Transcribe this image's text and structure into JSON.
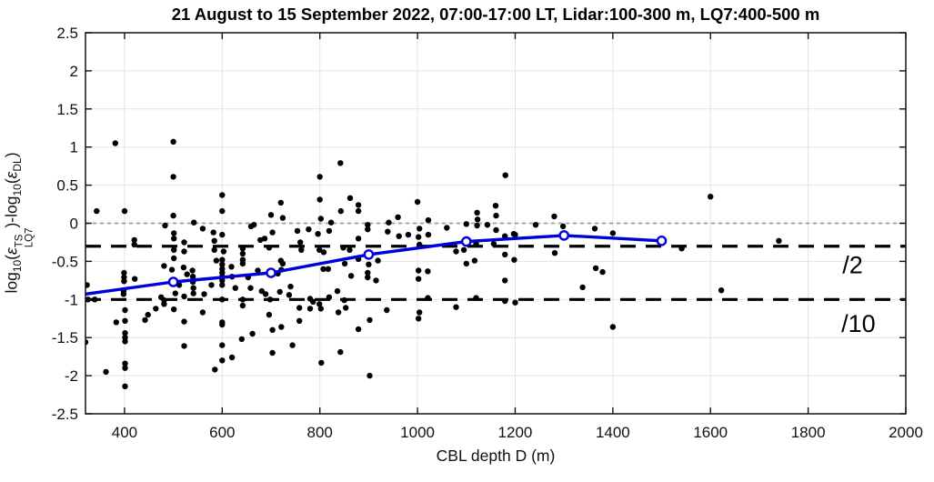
{
  "chart_data": {
    "type": "scatter",
    "title": "21 August to 15 September 2022, 07:00-17:00 LT, Lidar:100-300 m, LQ7:400-500 m",
    "xlabel": "CBL depth D (m)",
    "ylabel": "log10(ε_LQ7^TS)-log10(ε_DL)",
    "ylabel_rich": {
      "pre": "log",
      "sub1": "10",
      "p1": "(",
      "eps1": "ε",
      "sup": "TS",
      "sub2": "LQ7",
      "mid": ")-log",
      "sub3": "10",
      "p2": "(",
      "eps2": "ε",
      "sub4": "DL",
      "post": ")"
    },
    "xlim": [
      320,
      2000
    ],
    "ylim": [
      -2.5,
      2.5
    ],
    "xticks": [
      400,
      600,
      800,
      1000,
      1200,
      1400,
      1600,
      1800,
      2000
    ],
    "xticklabels": [
      "400",
      "600",
      "800",
      "1000",
      "1200",
      "1400",
      "1600",
      "1800",
      "2000"
    ],
    "yticks": [
      -2.5,
      -2,
      -1.5,
      -1,
      -0.5,
      0,
      0.5,
      1,
      1.5,
      2,
      2.5
    ],
    "yticklabels": [
      "-2.5",
      "-2",
      "-1.5",
      "-1",
      "-0.5",
      "0",
      "0.5",
      "1",
      "1.5",
      "2",
      "2.5"
    ],
    "grid": true,
    "grid_color": "#e3e3e3",
    "axis_color": "#111111",
    "background": "#ffffff",
    "legend": "none",
    "reference_lines": [
      {
        "y": 0,
        "color": "#a8a8a8",
        "style": "dotted",
        "width": 2,
        "label": ""
      },
      {
        "y": -0.301,
        "color": "#000000",
        "style": "dashed",
        "width": 3.2,
        "label": "/2",
        "label_x": 1891,
        "label_y": -0.54
      },
      {
        "y": -1.0,
        "color": "#000000",
        "style": "dashed",
        "width": 3.2,
        "label": "/10",
        "label_x": 1903,
        "label_y": -1.31
      }
    ],
    "series": [
      {
        "name": "lidar-vs-lq7-points",
        "type": "scatter",
        "color": "#000000",
        "marker": "filled-circle",
        "marker_radius": 3.2,
        "data": [
          [
            381,
            1.05
          ],
          [
            500,
            1.07
          ],
          [
            842,
            0.79
          ],
          [
            1180,
            0.63
          ],
          [
            500,
            0.61
          ],
          [
            800,
            0.61
          ],
          [
            600,
            0.37
          ],
          [
            1600,
            0.35
          ],
          [
            862,
            0.33
          ],
          [
            800,
            0.31
          ],
          [
            1000,
            0.28
          ],
          [
            720,
            0.27
          ],
          [
            879,
            0.24
          ],
          [
            1160,
            0.23
          ],
          [
            343,
            0.16
          ],
          [
            400,
            0.16
          ],
          [
            600,
            0.16
          ],
          [
            843,
            0.16
          ],
          [
            879,
            0.16
          ],
          [
            1122,
            0.14
          ],
          [
            700,
            0.11
          ],
          [
            500,
            0.1
          ],
          [
            1161,
            0.1
          ],
          [
            1280,
            0.09
          ],
          [
            960,
            0.08
          ],
          [
            724,
            0.07
          ],
          [
            802,
            0.06
          ],
          [
            1123,
            0.05
          ],
          [
            1022,
            0.04
          ],
          [
            823,
            0.01
          ],
          [
            941,
            0.01
          ],
          [
            542,
            0.01
          ],
          [
            1100,
            -0.01
          ],
          [
            665,
            -0.02
          ],
          [
            1143,
            -0.02
          ],
          [
            1242,
            -0.02
          ],
          [
            898,
            -0.02
          ],
          [
            483,
            -0.03
          ],
          [
            1122,
            -0.03
          ],
          [
            659,
            -0.04
          ],
          [
            1298,
            -0.04
          ],
          [
            1060,
            -0.06
          ],
          [
            560,
            -0.07
          ],
          [
            1004,
            -0.07
          ],
          [
            1363,
            -0.07
          ],
          [
            777,
            -0.08
          ],
          [
            898,
            -0.08
          ],
          [
            1161,
            -0.09
          ],
          [
            754,
            -0.1
          ],
          [
            819,
            -0.1
          ],
          [
            939,
            -0.11
          ],
          [
            582,
            -0.12
          ],
          [
            703,
            -0.12
          ],
          [
            501,
            -0.13
          ],
          [
            1400,
            -0.13
          ],
          [
            796,
            -0.14
          ],
          [
            1197,
            -0.14
          ],
          [
            600,
            -0.15
          ],
          [
            981,
            -0.15
          ],
          [
            1022,
            -0.15
          ],
          [
            1200,
            -0.15
          ],
          [
            962,
            -0.17
          ],
          [
            1179,
            -0.17
          ],
          [
            1002,
            -0.18
          ],
          [
            501,
            -0.2
          ],
          [
            687,
            -0.2
          ],
          [
            879,
            -0.2
          ],
          [
            420,
            -0.22
          ],
          [
            678,
            -0.22
          ],
          [
            584,
            -0.23
          ],
          [
            1740,
            -0.23
          ],
          [
            522,
            -0.25
          ],
          [
            760,
            -0.25
          ],
          [
            1120,
            -0.27
          ],
          [
            1156,
            -0.27
          ],
          [
            420,
            -0.28
          ],
          [
            1004,
            -0.28
          ],
          [
            696,
            -0.32
          ],
          [
            848,
            -0.32
          ],
          [
            642,
            -0.33
          ],
          [
            1541,
            -0.33
          ],
          [
            501,
            -0.35
          ],
          [
            584,
            -0.35
          ],
          [
            762,
            -0.35
          ],
          [
            799,
            -0.35
          ],
          [
            861,
            -0.35
          ],
          [
            1095,
            -0.35
          ],
          [
            522,
            -0.37
          ],
          [
            603,
            -0.37
          ],
          [
            1079,
            -0.37
          ],
          [
            808,
            -0.38
          ],
          [
            1281,
            -0.39
          ],
          [
            642,
            -0.4
          ],
          [
            1179,
            -0.41
          ],
          [
            501,
            -0.46
          ],
          [
            879,
            -0.47
          ],
          [
            600,
            -0.48
          ],
          [
            642,
            -0.48
          ],
          [
            1198,
            -0.48
          ],
          [
            588,
            -0.49
          ],
          [
            720,
            -0.49
          ],
          [
            919,
            -0.49
          ],
          [
            1117,
            -0.49
          ],
          [
            642,
            -0.53
          ],
          [
            724,
            -0.53
          ],
          [
            851,
            -0.53
          ],
          [
            1100,
            -0.53
          ],
          [
            600,
            -0.54
          ],
          [
            900,
            -0.54
          ],
          [
            481,
            -0.56
          ],
          [
            619,
            -0.57
          ],
          [
            521,
            -0.58
          ],
          [
            1365,
            -0.59
          ],
          [
            600,
            -0.6
          ],
          [
            807,
            -0.6
          ],
          [
            817,
            -0.6
          ],
          [
            497,
            -0.61
          ],
          [
            721,
            -0.61
          ],
          [
            539,
            -0.62
          ],
          [
            673,
            -0.62
          ],
          [
            1002,
            -0.62
          ],
          [
            1021,
            -0.63
          ],
          [
            1379,
            -0.64
          ],
          [
            399,
            -0.65
          ],
          [
            600,
            -0.65
          ],
          [
            898,
            -0.65
          ],
          [
            714,
            -0.66
          ],
          [
            528,
            -0.67
          ],
          [
            864,
            -0.69
          ],
          [
            399,
            -0.71
          ],
          [
            540,
            -0.7
          ],
          [
            600,
            -0.7
          ],
          [
            620,
            -0.7
          ],
          [
            653,
            -0.71
          ],
          [
            898,
            -0.71
          ],
          [
            421,
            -0.73
          ],
          [
            1002,
            -0.73
          ],
          [
            399,
            -0.76
          ],
          [
            600,
            -0.75
          ],
          [
            915,
            -0.75
          ],
          [
            1179,
            -0.75
          ],
          [
            540,
            -0.77
          ],
          [
            323,
            -0.81
          ],
          [
            512,
            -0.81
          ],
          [
            578,
            -0.81
          ],
          [
            600,
            -0.81
          ],
          [
            740,
            -0.83
          ],
          [
            1338,
            -0.84
          ],
          [
            541,
            -0.85
          ],
          [
            627,
            -0.85
          ],
          [
            658,
            -0.85
          ],
          [
            1622,
            -0.88
          ],
          [
            398,
            -0.89
          ],
          [
            681,
            -0.89
          ],
          [
            836,
            -0.89
          ],
          [
            718,
            -0.9
          ],
          [
            541,
            -0.92
          ],
          [
            504,
            -0.92
          ],
          [
            398,
            -0.93
          ],
          [
            563,
            -0.93
          ],
          [
            689,
            -0.93
          ],
          [
            737,
            -0.94
          ],
          [
            522,
            -0.96
          ],
          [
            475,
            -0.97
          ],
          [
            819,
            -0.97
          ],
          [
            1021,
            -0.98
          ],
          [
            1120,
            -0.98
          ],
          [
            780,
            -0.99
          ],
          [
            325,
            -1.0
          ],
          [
            339,
            -1.0
          ],
          [
            600,
            -1.0
          ],
          [
            642,
            -1.0
          ],
          [
            698,
            -1.0
          ],
          [
            481,
            -1.01
          ],
          [
            850,
            -1.01
          ],
          [
            1179,
            -1.02
          ],
          [
            786,
            -1.03
          ],
          [
            1200,
            -1.04
          ],
          [
            481,
            -1.06
          ],
          [
            799,
            -1.06
          ],
          [
            642,
            -1.08
          ],
          [
            1079,
            -1.1
          ],
          [
            758,
            -1.11
          ],
          [
            853,
            -1.11
          ],
          [
            464,
            -1.12
          ],
          [
            780,
            -1.12
          ],
          [
            802,
            -1.12
          ],
          [
            501,
            -1.13
          ],
          [
            401,
            -1.14
          ],
          [
            937,
            -1.14
          ],
          [
            560,
            -1.17
          ],
          [
            838,
            -1.17
          ],
          [
            1004,
            -1.17
          ],
          [
            448,
            -1.2
          ],
          [
            696,
            -1.2
          ],
          [
            1002,
            -1.25
          ],
          [
            442,
            -1.27
          ],
          [
            902,
            -1.27
          ],
          [
            401,
            -1.28
          ],
          [
            758,
            -1.28
          ],
          [
            522,
            -1.29
          ],
          [
            383,
            -1.3
          ],
          [
            600,
            -1.3
          ],
          [
            600,
            -1.33
          ],
          [
            721,
            -1.36
          ],
          [
            1400,
            -1.36
          ],
          [
            879,
            -1.39
          ],
          [
            703,
            -1.4
          ],
          [
            401,
            -1.44
          ],
          [
            662,
            -1.45
          ],
          [
            401,
            -1.5
          ],
          [
            640,
            -1.52
          ],
          [
            401,
            -1.55
          ],
          [
            320,
            -1.56
          ],
          [
            600,
            -1.6
          ],
          [
            744,
            -1.6
          ],
          [
            522,
            -1.61
          ],
          [
            842,
            -1.69
          ],
          [
            703,
            -1.7
          ],
          [
            620,
            -1.76
          ],
          [
            600,
            -1.8
          ],
          [
            401,
            -1.84
          ],
          [
            803,
            -1.83
          ],
          [
            401,
            -1.9
          ],
          [
            585,
            -1.92
          ],
          [
            362,
            -1.95
          ],
          [
            902,
            -2.0
          ],
          [
            401,
            -2.14
          ]
        ]
      },
      {
        "name": "binned-mean-line",
        "type": "line",
        "color": "#0000dd",
        "width": 3.4,
        "marker": "open-circle",
        "marker_radius": 4.6,
        "vertices": [
          [
            320,
            -0.93
          ],
          [
            500,
            -0.77
          ],
          [
            700,
            -0.65
          ],
          [
            900,
            -0.41
          ],
          [
            1100,
            -0.24
          ],
          [
            1300,
            -0.16
          ],
          [
            1500,
            -0.23
          ]
        ],
        "markers": [
          [
            500,
            -0.77
          ],
          [
            700,
            -0.65
          ],
          [
            900,
            -0.41
          ],
          [
            1100,
            -0.24
          ],
          [
            1300,
            -0.16
          ],
          [
            1500,
            -0.23
          ]
        ]
      }
    ]
  }
}
